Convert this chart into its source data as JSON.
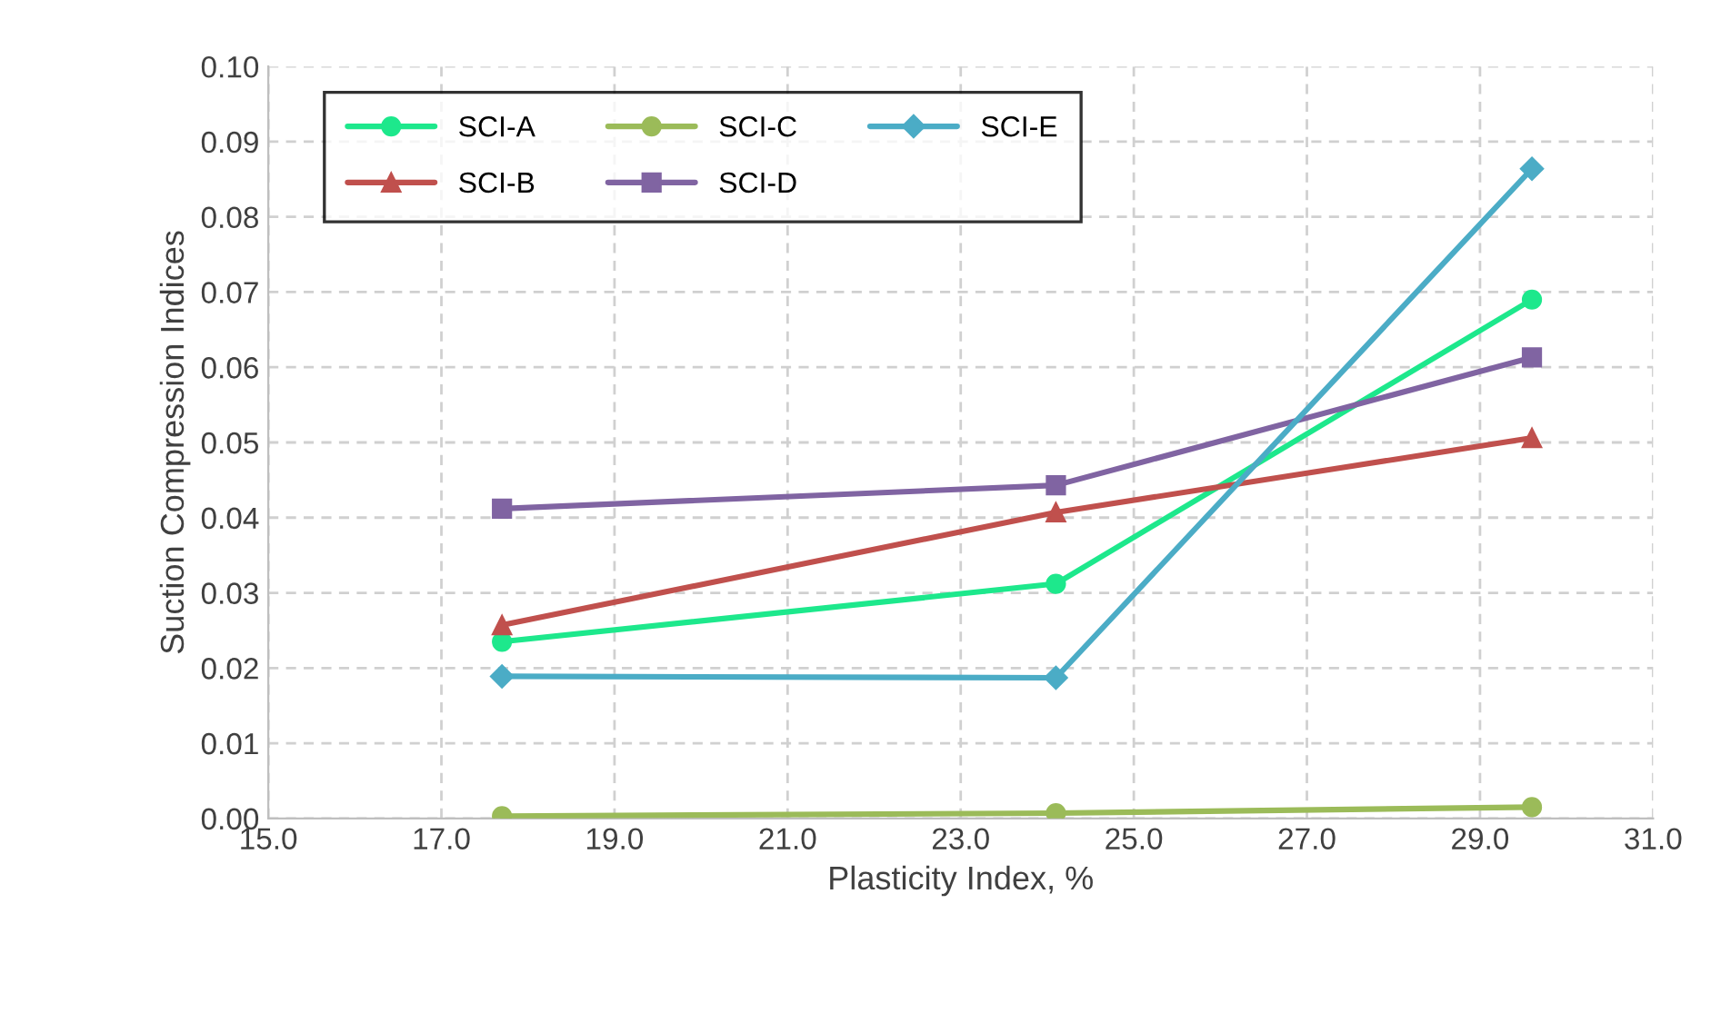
{
  "chart_data": {
    "type": "line",
    "xlabel": "Plasticity Index, %",
    "ylabel": "Suction Compression Indices",
    "x": [
      17.7,
      24.1,
      29.6
    ],
    "series": [
      {
        "name": "SCI-A",
        "color": "#1de88c",
        "marker": "circle",
        "values": [
          0.0235,
          0.0312,
          0.069
        ]
      },
      {
        "name": "SCI-B",
        "color": "#c0504d",
        "marker": "triangle",
        "values": [
          0.0257,
          0.0407,
          0.0506
        ]
      },
      {
        "name": "SCI-C",
        "color": "#9bbb59",
        "marker": "circle",
        "values": [
          0.0003,
          0.0007,
          0.0015
        ]
      },
      {
        "name": "SCI-D",
        "color": "#8064a2",
        "marker": "square",
        "values": [
          0.0412,
          0.0443,
          0.0613
        ]
      },
      {
        "name": "SCI-E",
        "color": "#4bacc6",
        "marker": "diamond",
        "values": [
          0.0189,
          0.0187,
          0.0864
        ]
      }
    ],
    "xlim": [
      15.0,
      31.0
    ],
    "xticks": [
      {
        "value": 15,
        "label": "15.0"
      },
      {
        "value": 17,
        "label": "17.0"
      },
      {
        "value": 19,
        "label": "19.0"
      },
      {
        "value": 21,
        "label": "21.0"
      },
      {
        "value": 23,
        "label": "23.0"
      },
      {
        "value": 25,
        "label": "25.0"
      },
      {
        "value": 27,
        "label": "27.0"
      },
      {
        "value": 29,
        "label": "29.0"
      },
      {
        "value": 31,
        "label": "31.0"
      }
    ],
    "ylim": [
      0.0,
      0.1
    ],
    "yticks": [
      {
        "value": 0,
        "label": "0.00"
      },
      {
        "value": 0.01,
        "label": "0.01"
      },
      {
        "value": 0.02,
        "label": "0.02"
      },
      {
        "value": 0.03,
        "label": "0.03"
      },
      {
        "value": 0.04,
        "label": "0.04"
      },
      {
        "value": 0.05,
        "label": "0.05"
      },
      {
        "value": 0.06,
        "label": "0.06"
      },
      {
        "value": 0.07,
        "label": "0.07"
      },
      {
        "value": 0.08,
        "label": "0.08"
      },
      {
        "value": 0.09,
        "label": "0.09"
      },
      {
        "value": 0.1,
        "label": "0.10"
      }
    ],
    "grid": true,
    "legend": "top left",
    "line_style": "solid"
  }
}
